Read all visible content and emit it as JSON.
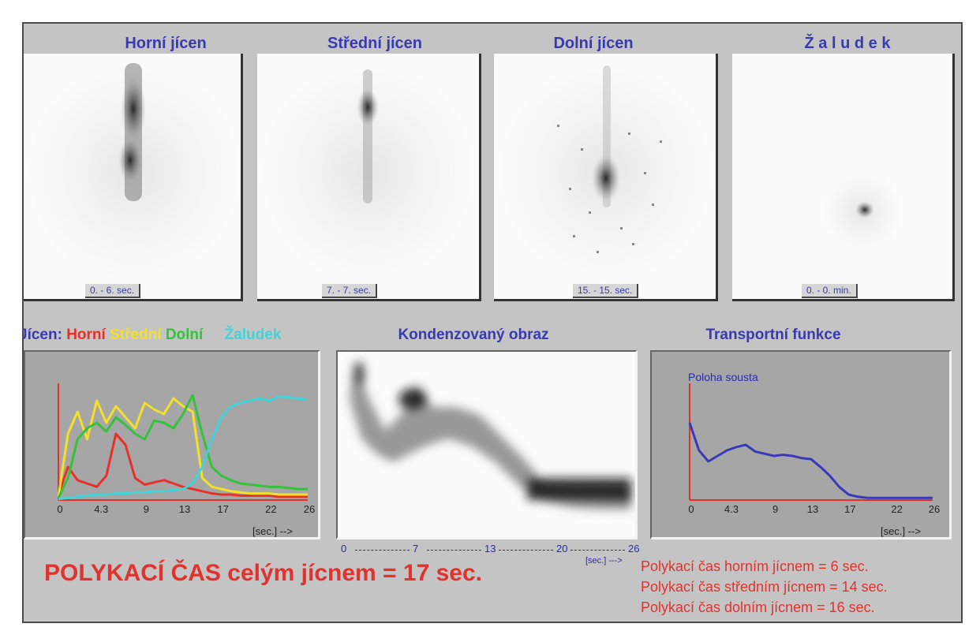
{
  "panels": [
    {
      "title": "Horní jícen",
      "time": "0. - 6. sec."
    },
    {
      "title": "Střední jícen",
      "time": "7. - 7. sec."
    },
    {
      "title": "Dolní jícen",
      "time": "15. - 15. sec."
    },
    {
      "title": "Ž a l u d e k",
      "time": "0. - 0. min."
    }
  ],
  "legend": {
    "prefix": "Jícen:",
    "items": [
      {
        "label": "Horní",
        "color": "#e8302a"
      },
      {
        "label": "Střední",
        "color": "#f2e02a"
      },
      {
        "label": "Dolní",
        "color": "#34c23a"
      },
      {
        "label": "Žaludek",
        "color": "#40d4d8"
      }
    ]
  },
  "condensed": {
    "title": "Kondenzovaný obraz",
    "ticks": [
      "0",
      "7",
      "13",
      "20",
      "26"
    ],
    "unit": "[sec.] --->"
  },
  "transport": {
    "title": "Transportní funkce",
    "series_label": "Poloha sousta"
  },
  "axis": {
    "ticks": [
      "0",
      "4.3",
      "9",
      "13",
      "17",
      "22",
      "26"
    ],
    "unit": "[sec.] -->"
  },
  "summary": {
    "main": "POLYKACÍ ČAS celým jícnem  =   17 sec.",
    "lines": [
      "Polykací čas horním jícnem   = 6 sec.",
      "Polykací čas středním jícnem   = 14 sec.",
      "Polykací čas dolním jícnem   = 16 sec."
    ]
  },
  "chart_data": [
    {
      "type": "line",
      "x_ticks": [
        "0",
        "4.3",
        "9",
        "13",
        "17",
        "22",
        "26"
      ],
      "xlim": [
        0,
        26
      ],
      "ylim": [
        0,
        100
      ],
      "series": [
        {
          "name": "Horní",
          "color": "#e8302a",
          "x": [
            0,
            1,
            2,
            3,
            4,
            5,
            6,
            7,
            8,
            9,
            10,
            11,
            12,
            13,
            14,
            15,
            16,
            17,
            18,
            19,
            20,
            21,
            22,
            23,
            24,
            25,
            26
          ],
          "y": [
            5,
            30,
            18,
            15,
            12,
            22,
            60,
            50,
            20,
            14,
            16,
            18,
            15,
            12,
            10,
            8,
            6,
            5,
            5,
            4,
            4,
            4,
            4,
            3,
            3,
            3,
            3
          ]
        },
        {
          "name": "Střední",
          "color": "#f2e02a",
          "x": [
            0,
            1,
            2,
            3,
            4,
            5,
            6,
            7,
            8,
            9,
            10,
            11,
            12,
            13,
            14,
            15,
            16,
            17,
            18,
            19,
            20,
            21,
            22,
            23,
            24,
            25,
            26
          ],
          "y": [
            3,
            60,
            80,
            55,
            90,
            70,
            85,
            75,
            65,
            88,
            82,
            78,
            92,
            85,
            80,
            20,
            12,
            10,
            8,
            7,
            6,
            6,
            6,
            5,
            5,
            5,
            5
          ]
        },
        {
          "name": "Dolní",
          "color": "#34c23a",
          "x": [
            0,
            1,
            2,
            3,
            4,
            5,
            6,
            7,
            8,
            9,
            10,
            11,
            12,
            13,
            14,
            15,
            16,
            17,
            18,
            19,
            20,
            21,
            22,
            23,
            24,
            25,
            26
          ],
          "y": [
            2,
            20,
            55,
            65,
            70,
            62,
            75,
            68,
            60,
            55,
            72,
            70,
            65,
            78,
            95,
            60,
            30,
            22,
            18,
            15,
            14,
            13,
            12,
            12,
            11,
            10,
            10
          ]
        },
        {
          "name": "Žaludek",
          "color": "#40d4d8",
          "x": [
            0,
            1,
            2,
            3,
            4,
            5,
            6,
            7,
            8,
            9,
            10,
            11,
            12,
            13,
            14,
            15,
            16,
            17,
            18,
            19,
            20,
            21,
            22,
            23,
            24,
            25,
            26
          ],
          "y": [
            1,
            2,
            3,
            4,
            5,
            5,
            6,
            6,
            7,
            7,
            8,
            8,
            9,
            10,
            15,
            30,
            55,
            75,
            85,
            88,
            90,
            92,
            90,
            94,
            93,
            92,
            91
          ]
        }
      ]
    },
    {
      "type": "line",
      "x_ticks": [
        "0",
        "4.3",
        "9",
        "13",
        "17",
        "22",
        "26"
      ],
      "xlim": [
        0,
        26
      ],
      "ylim": [
        0,
        100
      ],
      "series": [
        {
          "name": "Poloha sousta",
          "color": "#3a3ab8",
          "x": [
            0,
            1,
            2,
            3,
            4,
            5,
            6,
            7,
            8,
            9,
            10,
            11,
            12,
            13,
            14,
            15,
            16,
            17,
            18,
            19,
            20,
            21,
            22,
            23,
            24,
            25,
            26
          ],
          "y": [
            70,
            45,
            35,
            40,
            45,
            48,
            50,
            44,
            42,
            40,
            41,
            40,
            38,
            37,
            30,
            22,
            12,
            5,
            3,
            2,
            2,
            2,
            2,
            2,
            2,
            2,
            2
          ]
        }
      ]
    }
  ]
}
